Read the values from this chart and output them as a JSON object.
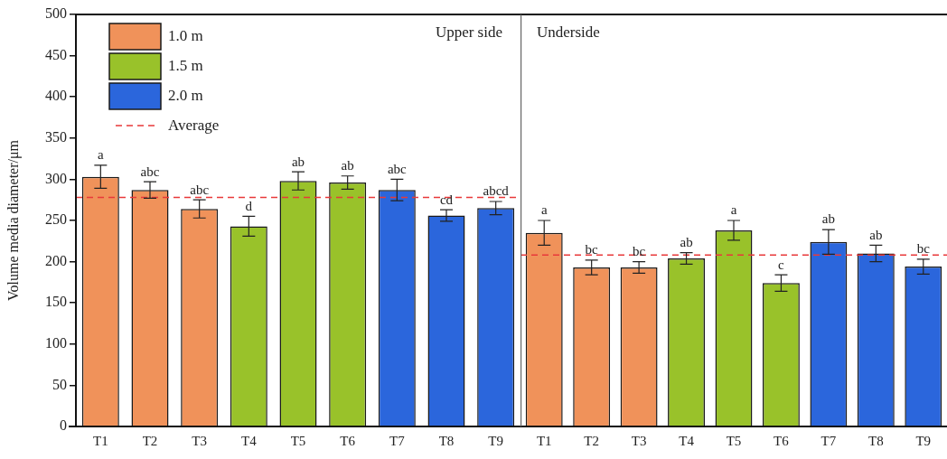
{
  "chart_data": [
    {
      "type": "bar",
      "ylabel": "Volume media diameter/μm",
      "annotations": [
        "Upper side"
      ],
      "categories": [
        "T1",
        "T2",
        "T3",
        "T4",
        "T5",
        "T6",
        "T7",
        "T8",
        "T9"
      ],
      "series": [
        {
          "name": "1.0 m",
          "color": "#f0925a",
          "values": [
            303,
            287,
            264,
            null,
            null,
            null,
            null,
            null,
            null
          ],
          "errors": [
            14,
            10,
            11,
            null,
            null,
            null,
            null,
            null,
            null
          ],
          "value_labels": [
            "a",
            "abc",
            "abc",
            null,
            null,
            null,
            null,
            null,
            null
          ]
        },
        {
          "name": "1.5 m",
          "color": "#99c22a",
          "values": [
            null,
            null,
            null,
            243,
            298,
            296,
            null,
            null,
            null
          ],
          "errors": [
            null,
            null,
            null,
            12,
            11,
            8,
            null,
            null,
            null
          ],
          "value_labels": [
            null,
            null,
            null,
            "d",
            "ab",
            "ab",
            null,
            null,
            null
          ]
        },
        {
          "name": "2.0 m",
          "color": "#2b66dc",
          "values": [
            null,
            null,
            null,
            null,
            null,
            null,
            287,
            256,
            265
          ],
          "errors": [
            null,
            null,
            null,
            null,
            null,
            null,
            13,
            7,
            8
          ],
          "value_labels": [
            null,
            null,
            null,
            null,
            null,
            null,
            "abc",
            "cd",
            "abcd"
          ]
        }
      ],
      "ref_lines": [
        {
          "axis": "y",
          "value": 278,
          "label": "Average",
          "color": "#e8393a",
          "line_style": "dashed"
        }
      ],
      "ylim": [
        0,
        500
      ],
      "yticks": [
        0,
        50,
        100,
        150,
        200,
        250,
        300,
        350,
        400,
        450,
        500
      ],
      "grid": false,
      "legend": "top left"
    },
    {
      "type": "bar",
      "annotations": [
        "Underside"
      ],
      "categories": [
        "T1",
        "T2",
        "T3",
        "T4",
        "T5",
        "T6",
        "T7",
        "T8",
        "T9"
      ],
      "series": [
        {
          "color": "#f0925a",
          "values": [
            235,
            193,
            193,
            null,
            null,
            null,
            null,
            null,
            null
          ],
          "errors": [
            15,
            9,
            7,
            null,
            null,
            null,
            null,
            null,
            null
          ],
          "value_labels": [
            "a",
            "bc",
            "bc",
            null,
            null,
            null,
            null,
            null,
            null
          ]
        },
        {
          "color": "#99c22a",
          "values": [
            null,
            null,
            null,
            204,
            238,
            174,
            null,
            null,
            null
          ],
          "errors": [
            null,
            null,
            null,
            7,
            12,
            10,
            null,
            null,
            null
          ],
          "value_labels": [
            null,
            null,
            null,
            "ab",
            "a",
            "c",
            null,
            null,
            null
          ]
        },
        {
          "color": "#2b66dc",
          "values": [
            null,
            null,
            null,
            null,
            null,
            null,
            224,
            210,
            194
          ],
          "errors": [
            null,
            null,
            null,
            null,
            null,
            null,
            15,
            10,
            9
          ],
          "value_labels": [
            null,
            null,
            null,
            null,
            null,
            null,
            "ab",
            "ab",
            "bc"
          ]
        }
      ],
      "ref_lines": [
        {
          "axis": "y",
          "value": 208,
          "color": "#e8393a",
          "line_style": "dashed"
        }
      ],
      "ylim": [
        0,
        500
      ],
      "yticks": [
        0,
        50,
        100,
        150,
        200,
        250,
        300,
        350,
        400,
        450,
        500
      ],
      "grid": false,
      "tick_labels": "x"
    }
  ]
}
